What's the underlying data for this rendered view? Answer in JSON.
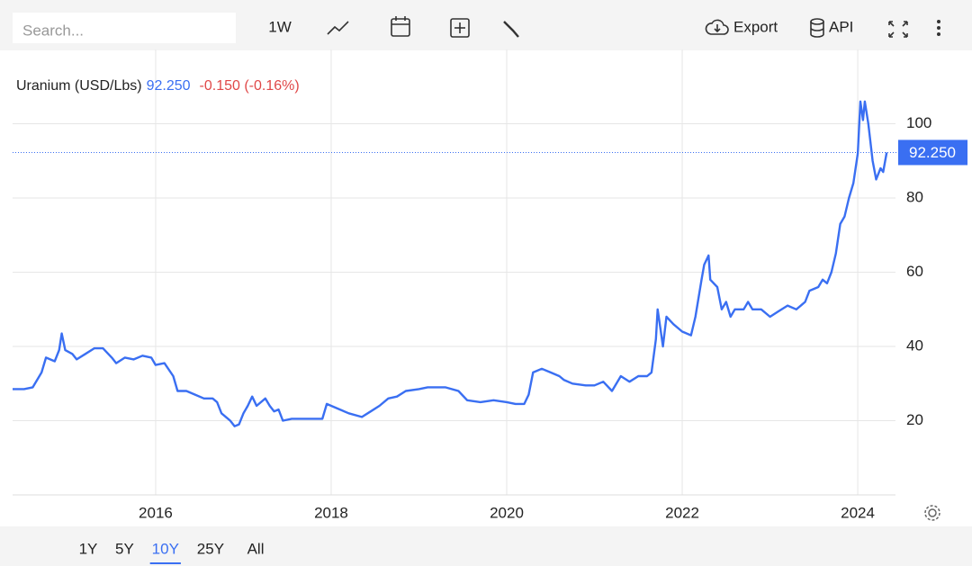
{
  "toolbar": {
    "search_placeholder": "Search...",
    "interval": "1W",
    "export": "Export",
    "api": "API"
  },
  "ranges": [
    "1Y",
    "5Y",
    "10Y",
    "25Y",
    "All"
  ],
  "active_range": 2,
  "chart_data": {
    "type": "line",
    "title": "Uranium (USD/Lbs)",
    "last_label": "92.250",
    "change_label": "-0.150 (-0.16%)",
    "last_value": 92.25,
    "x": [
      2014.37,
      2014.5,
      2014.6,
      2014.7,
      2014.75,
      2014.85,
      2014.9,
      2014.93,
      2014.97,
      2015.05,
      2015.1,
      2015.2,
      2015.3,
      2015.4,
      2015.5,
      2015.55,
      2015.65,
      2015.75,
      2015.85,
      2015.95,
      2016.0,
      2016.1,
      2016.2,
      2016.25,
      2016.35,
      2016.45,
      2016.55,
      2016.65,
      2016.7,
      2016.75,
      2016.85,
      2016.9,
      2016.95,
      2017.0,
      2017.05,
      2017.1,
      2017.15,
      2017.25,
      2017.3,
      2017.35,
      2017.4,
      2017.45,
      2017.55,
      2017.65,
      2017.8,
      2017.9,
      2017.95,
      2018.0,
      2018.1,
      2018.2,
      2018.35,
      2018.45,
      2018.55,
      2018.65,
      2018.75,
      2018.85,
      2019.0,
      2019.1,
      2019.3,
      2019.45,
      2019.55,
      2019.7,
      2019.85,
      2020.0,
      2020.1,
      2020.2,
      2020.25,
      2020.3,
      2020.4,
      2020.5,
      2020.6,
      2020.65,
      2020.75,
      2020.9,
      2021.0,
      2021.1,
      2021.2,
      2021.3,
      2021.4,
      2021.5,
      2021.6,
      2021.65,
      2021.7,
      2021.72,
      2021.75,
      2021.78,
      2021.82,
      2021.9,
      2022.0,
      2022.1,
      2022.15,
      2022.22,
      2022.25,
      2022.3,
      2022.32,
      2022.4,
      2022.45,
      2022.5,
      2022.55,
      2022.6,
      2022.7,
      2022.75,
      2022.8,
      2022.9,
      2023.0,
      2023.1,
      2023.2,
      2023.3,
      2023.4,
      2023.45,
      2023.55,
      2023.6,
      2023.65,
      2023.7,
      2023.75,
      2023.8,
      2023.85,
      2023.9,
      2023.95,
      2024.0,
      2024.03,
      2024.06,
      2024.08,
      2024.12,
      2024.17,
      2024.21,
      2024.26,
      2024.29,
      2024.33
    ],
    "series": [
      {
        "name": "Uranium",
        "color": "#3a6ff2",
        "values": [
          28.5,
          28.5,
          29,
          33,
          37,
          36,
          39,
          43.5,
          39,
          38,
          36.5,
          38,
          39.5,
          39.5,
          37,
          35.5,
          37,
          36.5,
          37.5,
          37,
          35,
          35.5,
          32,
          28,
          28,
          27,
          26,
          26,
          25,
          22,
          20,
          18.5,
          19,
          22,
          24,
          26.5,
          24,
          26,
          24,
          22.5,
          23,
          20,
          20.5,
          20.5,
          20.5,
          20.5,
          24.5,
          24,
          23,
          22,
          21,
          22.5,
          24,
          26,
          26.5,
          28,
          28.5,
          29,
          29,
          28,
          25.5,
          25,
          25.5,
          25,
          24.5,
          24.5,
          27,
          33,
          34,
          33,
          32,
          31,
          30,
          29.5,
          29.5,
          30.5,
          28,
          32,
          30.5,
          32,
          32,
          33,
          42,
          50,
          45,
          40,
          48,
          46,
          44,
          43,
          48,
          58,
          62,
          64.5,
          58,
          56,
          50,
          52,
          48,
          50,
          50,
          52,
          50,
          50,
          48,
          49.5,
          51,
          50,
          52,
          55,
          56,
          58,
          57,
          60,
          65,
          73,
          75,
          80,
          84,
          92,
          106,
          101,
          106,
          100,
          90,
          85,
          88,
          87,
          92.25
        ]
      }
    ],
    "xlim": [
      2014.37,
      2024.43
    ],
    "xticks": [
      2016,
      2018,
      2020,
      2022,
      2024
    ],
    "ylim": [
      0,
      120
    ],
    "yticks": [
      20,
      40,
      60,
      80,
      100
    ],
    "grid": true
  }
}
